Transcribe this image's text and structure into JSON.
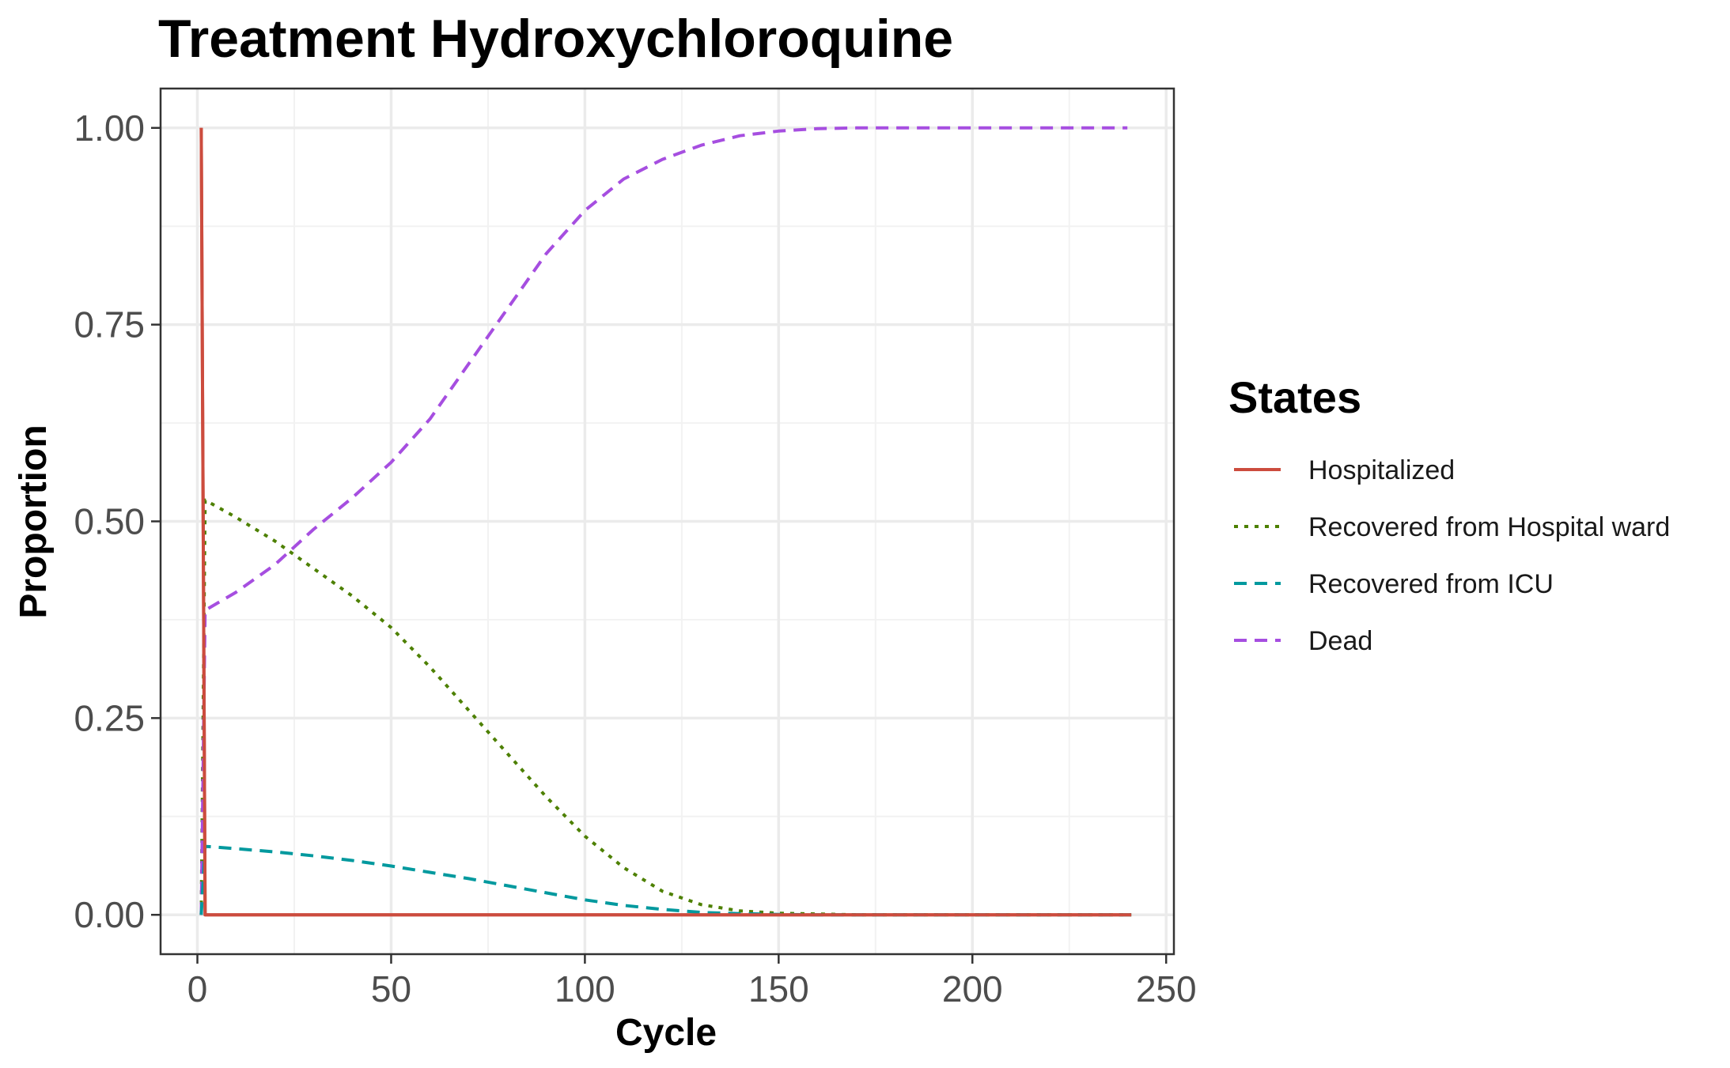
{
  "chart_data": {
    "type": "line",
    "title": "Treatment Hydroxychloroquine",
    "xlabel": "Cycle",
    "ylabel": "Proportion",
    "xlim": [
      -9.5,
      252
    ],
    "ylim": [
      -0.05,
      1.05
    ],
    "xticks": [
      0,
      50,
      100,
      150,
      200,
      250
    ],
    "yticks": [
      0,
      0.25,
      0.5,
      0.75,
      1
    ],
    "ytick_labels": [
      "0.00",
      "0.25",
      "0.50",
      "0.75",
      "1.00"
    ],
    "grid": true,
    "legend": {
      "title": "States",
      "position": "right"
    },
    "series": [
      {
        "name": "Hospitalized",
        "color": "#cc4c3e",
        "dash": "solid",
        "x": [
          1,
          2,
          3,
          241
        ],
        "y": [
          1.0,
          0.0,
          0.0,
          0.0
        ]
      },
      {
        "name": "Recovered from Hospital ward",
        "color": "#4d8000",
        "dash": "dotted",
        "x": [
          1,
          2,
          10,
          20,
          30,
          40,
          50,
          60,
          70,
          80,
          90,
          100,
          110,
          120,
          130,
          140,
          150,
          160,
          170,
          180,
          200,
          241
        ],
        "y": [
          0.0,
          0.527,
          0.505,
          0.475,
          0.44,
          0.405,
          0.365,
          0.315,
          0.26,
          0.205,
          0.15,
          0.1,
          0.06,
          0.03,
          0.013,
          0.005,
          0.002,
          0.001,
          0.0,
          0.0,
          0.0,
          0.0
        ]
      },
      {
        "name": "Recovered from ICU",
        "color": "#00999e",
        "dash": "dashed",
        "x": [
          1,
          2,
          10,
          20,
          30,
          40,
          50,
          60,
          70,
          80,
          90,
          100,
          110,
          120,
          130,
          140,
          150,
          160,
          170,
          180,
          200,
          241
        ],
        "y": [
          0.0,
          0.087,
          0.084,
          0.08,
          0.075,
          0.069,
          0.062,
          0.054,
          0.046,
          0.037,
          0.028,
          0.019,
          0.012,
          0.007,
          0.003,
          0.0015,
          0.0005,
          0.0,
          0.0,
          0.0,
          0.0,
          0.0
        ]
      },
      {
        "name": "Dead",
        "color": "#a64ee0",
        "dash": "dashed",
        "x": [
          1,
          2,
          10,
          20,
          30,
          40,
          50,
          60,
          70,
          80,
          90,
          100,
          110,
          120,
          130,
          140,
          150,
          160,
          170,
          180,
          200,
          220,
          240
        ],
        "y": [
          0.0,
          0.387,
          0.41,
          0.445,
          0.49,
          0.53,
          0.575,
          0.63,
          0.7,
          0.77,
          0.84,
          0.895,
          0.935,
          0.96,
          0.978,
          0.99,
          0.996,
          0.999,
          1.0,
          1.0,
          1.0,
          1.0,
          1.0
        ]
      }
    ]
  }
}
